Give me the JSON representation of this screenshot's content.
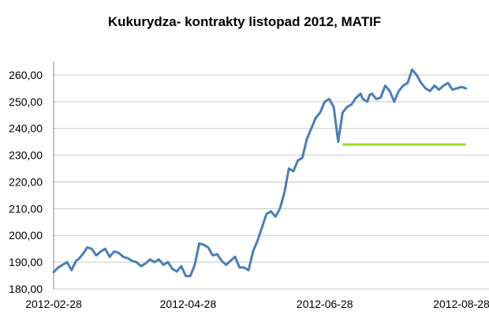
{
  "chart_data": {
    "type": "line",
    "title": "Kukurydza- kontrakty listopad 2012, MATIF",
    "xlabel": "",
    "ylabel": "",
    "ylim": [
      180,
      265
    ],
    "yticks": [
      "180,00",
      "190,00",
      "200,00",
      "210,00",
      "220,00",
      "230,00",
      "240,00",
      "250,00",
      "260,00"
    ],
    "ytick_values": [
      180,
      190,
      200,
      210,
      220,
      230,
      240,
      250,
      260
    ],
    "xticks": [
      "2012-02-28",
      "2012-04-28",
      "2012-06-28",
      "2012-08-28"
    ],
    "xtick_dates": [
      "2012-02-28",
      "2012-04-28",
      "2012-06-28",
      "2012-08-28"
    ],
    "x_domain": [
      "2012-02-28",
      "2012-08-28"
    ],
    "grid": "horizontal",
    "colors": {
      "series": "#4a7ebb",
      "reference": "#9bdb1f",
      "grid": "#c8c8c8"
    },
    "series": [
      {
        "x": [
          "2012-02-28",
          "2012-03-01",
          "2012-03-03",
          "2012-03-05",
          "2012-03-07",
          "2012-03-09",
          "2012-03-10",
          "2012-03-12",
          "2012-03-14",
          "2012-03-16",
          "2012-03-18",
          "2012-03-20",
          "2012-03-22",
          "2012-03-24",
          "2012-03-26",
          "2012-03-28",
          "2012-03-30",
          "2012-04-01",
          "2012-04-03",
          "2012-04-05",
          "2012-04-07",
          "2012-04-09",
          "2012-04-11",
          "2012-04-13",
          "2012-04-15",
          "2012-04-17",
          "2012-04-19",
          "2012-04-21",
          "2012-04-23",
          "2012-04-25",
          "2012-04-27",
          "2012-04-29",
          "2012-05-01",
          "2012-05-03",
          "2012-05-05",
          "2012-05-07",
          "2012-05-09",
          "2012-05-11",
          "2012-05-13",
          "2012-05-15",
          "2012-05-17",
          "2012-05-19",
          "2012-05-21",
          "2012-05-23",
          "2012-05-25",
          "2012-05-27",
          "2012-05-29",
          "2012-05-31",
          "2012-06-02",
          "2012-06-04",
          "2012-06-06",
          "2012-06-08",
          "2012-06-10",
          "2012-06-12",
          "2012-06-14",
          "2012-06-16",
          "2012-06-18",
          "2012-06-20",
          "2012-06-22",
          "2012-06-24",
          "2012-06-26",
          "2012-06-28",
          "2012-06-30",
          "2012-07-02",
          "2012-07-04",
          "2012-07-06",
          "2012-07-08",
          "2012-07-10",
          "2012-07-12",
          "2012-07-14",
          "2012-07-15",
          "2012-07-17",
          "2012-07-18",
          "2012-07-19",
          "2012-07-21",
          "2012-07-23",
          "2012-07-25",
          "2012-07-27",
          "2012-07-29",
          "2012-07-31",
          "2012-08-02",
          "2012-08-04",
          "2012-08-06",
          "2012-08-08",
          "2012-08-10",
          "2012-08-12",
          "2012-08-14",
          "2012-08-16",
          "2012-08-18",
          "2012-08-20",
          "2012-08-22",
          "2012-08-24",
          "2012-08-26",
          "2012-08-28",
          "2012-08-30"
        ],
        "values": [
          186.3,
          188.0,
          189.0,
          190.0,
          187.0,
          190.5,
          191.0,
          193.0,
          195.5,
          195.0,
          192.5,
          194.0,
          195.0,
          192.0,
          194.0,
          193.5,
          192.0,
          191.5,
          190.5,
          190.0,
          188.5,
          189.5,
          191.0,
          190.0,
          191.0,
          189.0,
          190.0,
          187.5,
          186.5,
          188.5,
          184.8,
          184.8,
          189.0,
          197.0,
          196.5,
          195.5,
          192.5,
          193.0,
          190.5,
          189.0,
          190.5,
          192.0,
          188.0,
          188.0,
          187.0,
          194.0,
          198.0,
          203.0,
          208.0,
          209.0,
          207.0,
          210.0,
          216.0,
          225.0,
          224.0,
          228.0,
          229.0,
          236.0,
          240.0,
          244.0,
          246.0,
          250.0,
          251.0,
          248.0,
          235.0,
          246.0,
          248.0,
          249.0,
          251.5,
          253.0,
          251.0,
          250.0,
          252.5,
          253.0,
          251.0,
          251.5,
          256.0,
          254.0,
          250.0,
          254.0,
          256.0,
          257.0,
          262.0,
          260.0,
          257.0,
          255.0,
          254.0,
          256.0,
          254.5,
          256.0,
          257.0,
          254.5,
          255.0,
          255.5,
          255.0
        ]
      }
    ],
    "reference_line": {
      "value": 234.0,
      "x_start": "2012-07-06",
      "x_end": "2012-08-30"
    }
  }
}
